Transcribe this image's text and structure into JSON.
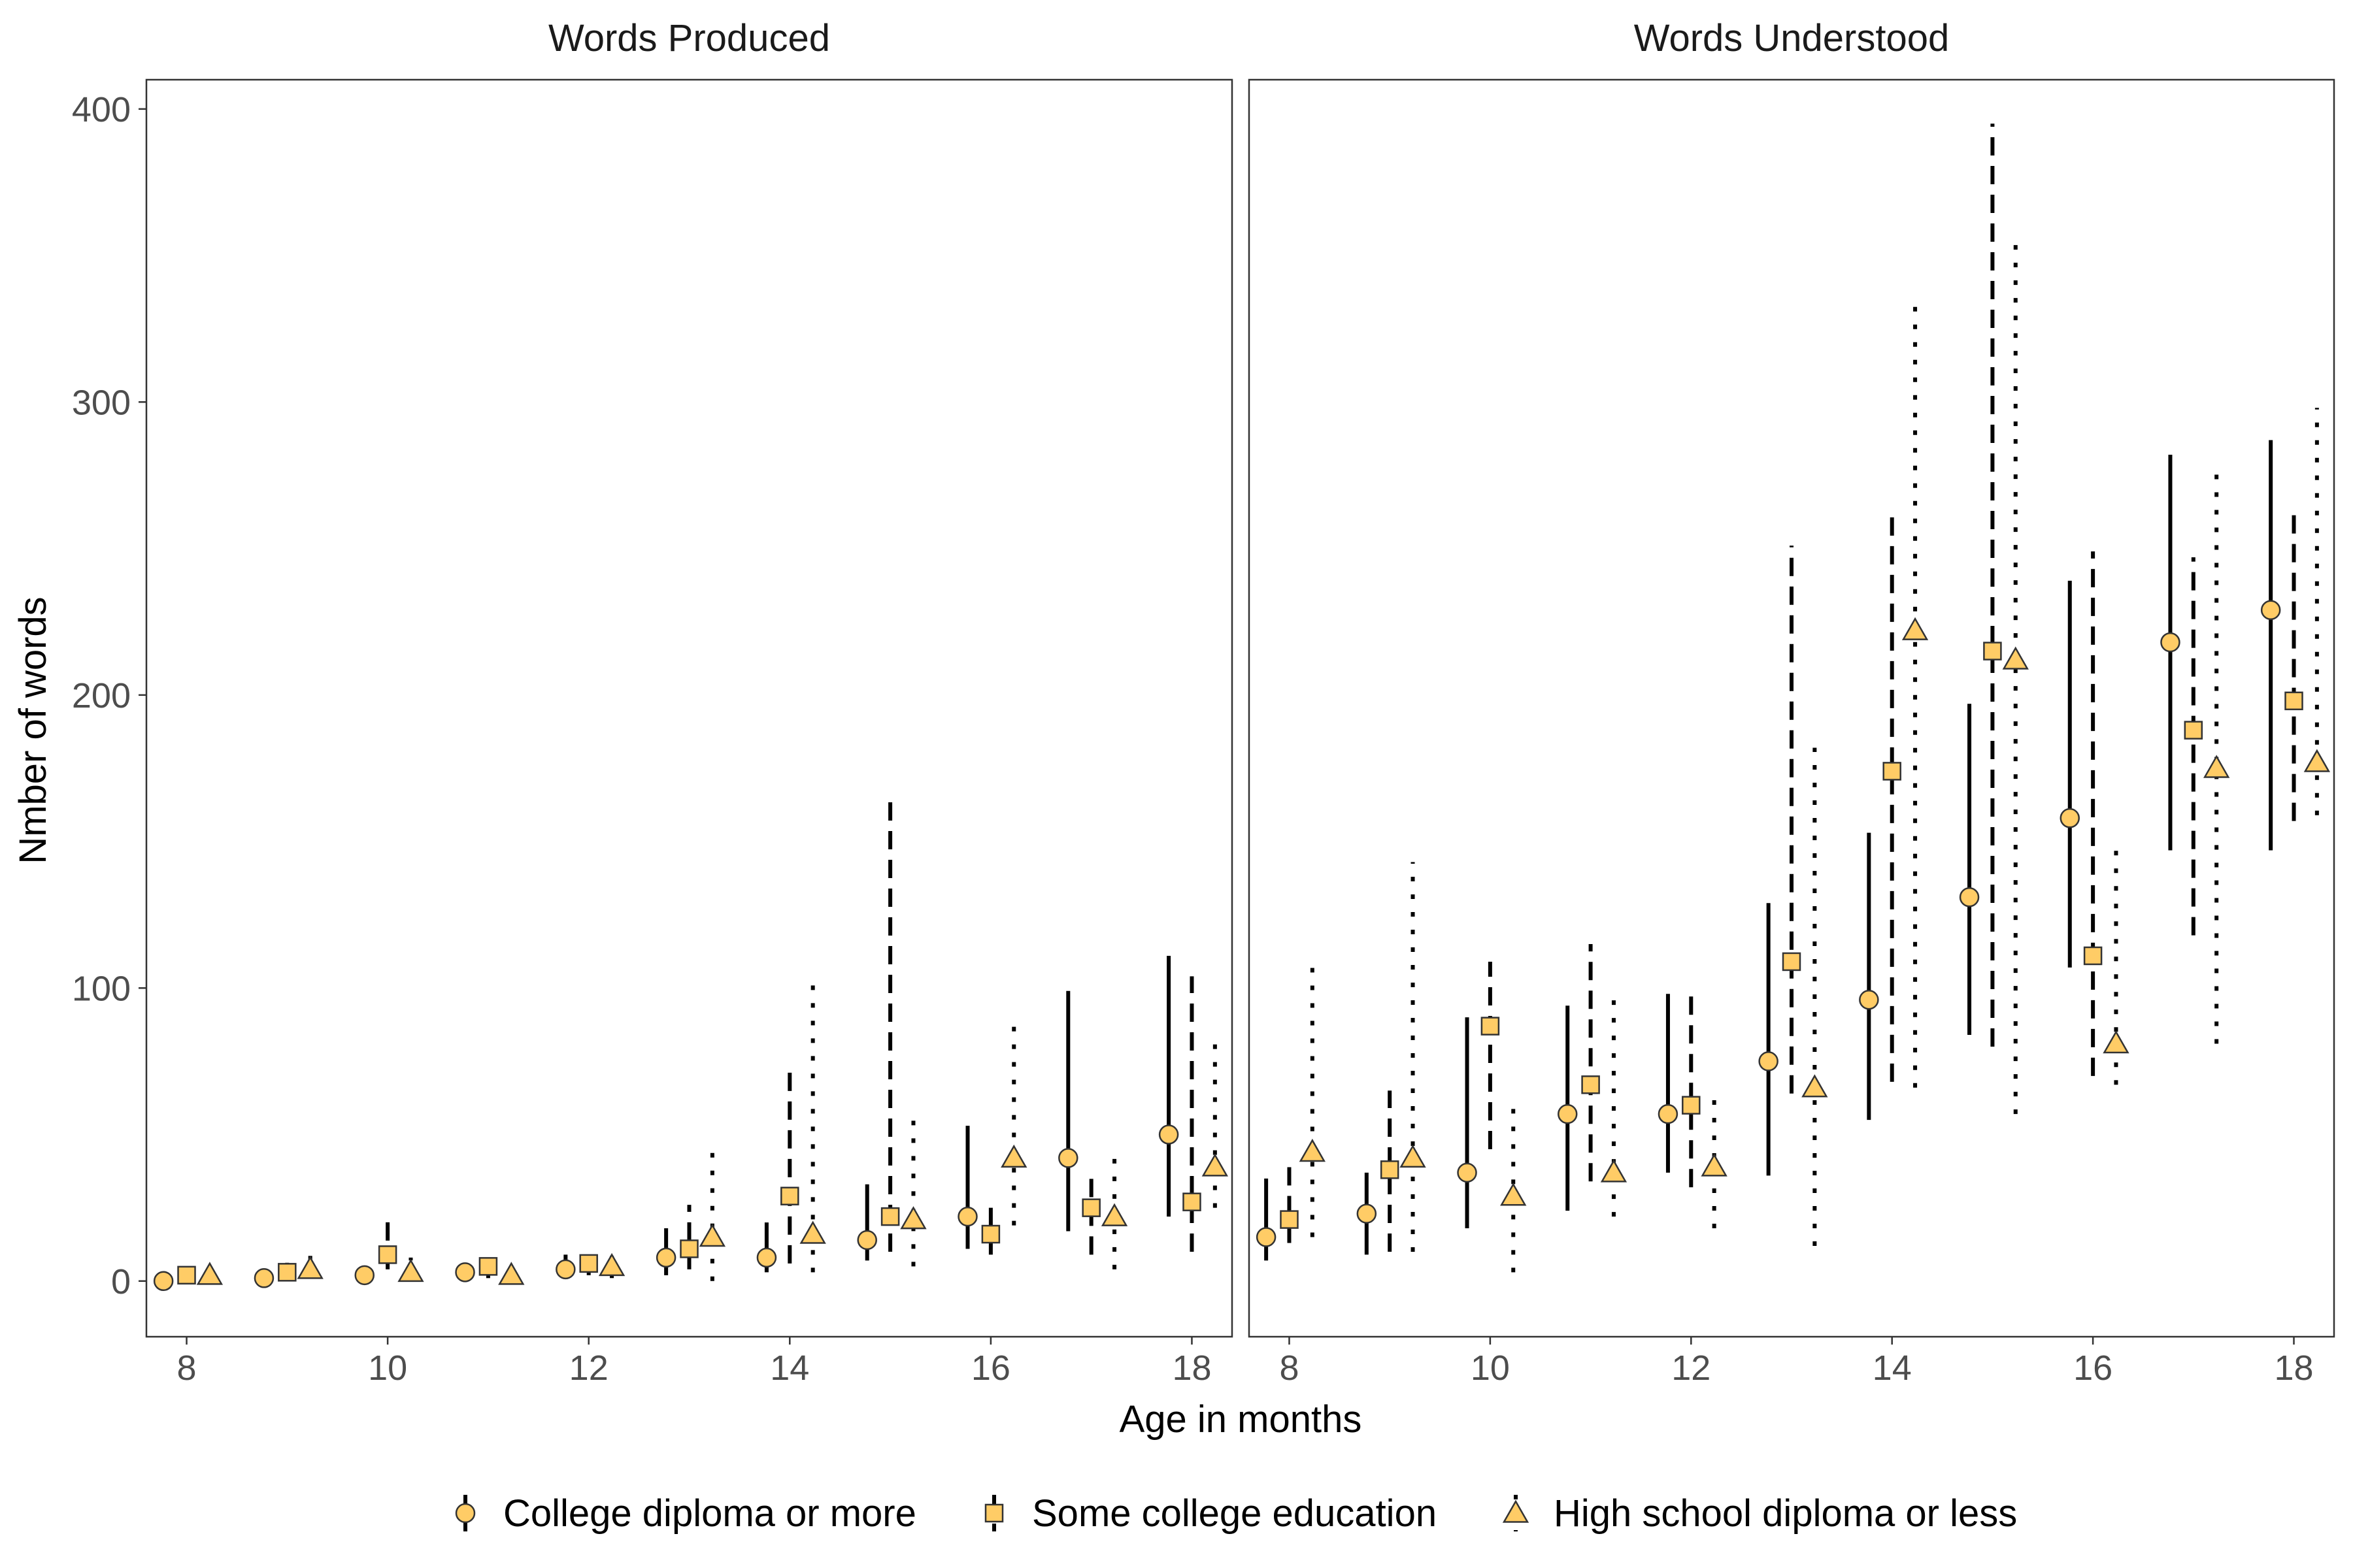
{
  "chart_data": {
    "type": "scatter",
    "xlabel": "Age in months",
    "ylabel": "Nmber of words",
    "xlim": [
      7.6,
      18.4
    ],
    "ylim": [
      -19,
      410
    ],
    "xticks": [
      8,
      10,
      12,
      14,
      16,
      18
    ],
    "yticks": [
      0,
      100,
      200,
      300,
      400
    ],
    "grid": false,
    "legend_position": "bottom",
    "marker_fill": "#FFCC66",
    "marker_stroke": "#333333",
    "range_color": "#000000",
    "series_offsets": [
      -0.23,
      0,
      0.23
    ],
    "series": [
      {
        "name": "College diploma or more",
        "marker": "circle",
        "range_style": "solid"
      },
      {
        "name": "Some college education",
        "marker": "square",
        "range_style": "dashed"
      },
      {
        "name": "High school diploma or less",
        "marker": "triangle",
        "range_style": "dotted"
      }
    ],
    "panels": [
      {
        "title": "Words Produced",
        "months": [
          8,
          9,
          10,
          11,
          12,
          13,
          14,
          15,
          16,
          17,
          18
        ],
        "data": [
          [
            {
              "y": 0,
              "lo": 0,
              "hi": 1
            },
            {
              "y": 1,
              "lo": 0,
              "hi": 3
            },
            {
              "y": 2,
              "lo": 0,
              "hi": 5
            },
            {
              "y": 3,
              "lo": 1,
              "hi": 6
            },
            {
              "y": 4,
              "lo": 1,
              "hi": 9
            },
            {
              "y": 8,
              "lo": 2,
              "hi": 18
            },
            {
              "y": 8,
              "lo": 3,
              "hi": 20
            },
            {
              "y": 14,
              "lo": 7,
              "hi": 33
            },
            {
              "y": 22,
              "lo": 11,
              "hi": 53
            },
            {
              "y": 42,
              "lo": 17,
              "hi": 99
            },
            {
              "y": 50,
              "lo": 22,
              "hi": 111
            }
          ],
          [
            {
              "y": 2,
              "lo": 0,
              "hi": 5
            },
            {
              "y": 3,
              "lo": 0,
              "hi": 9
            },
            {
              "y": 9,
              "lo": 4,
              "hi": 22
            },
            {
              "y": 5,
              "lo": 1,
              "hi": 8
            },
            {
              "y": 6,
              "lo": 2,
              "hi": 9
            },
            {
              "y": 11,
              "lo": 4,
              "hi": 26
            },
            {
              "y": 29,
              "lo": 6,
              "hi": 72
            },
            {
              "y": 22,
              "lo": 10,
              "hi": 165
            },
            {
              "y": 16,
              "lo": 9,
              "hi": 25
            },
            {
              "y": 25,
              "lo": 9,
              "hi": 37
            },
            {
              "y": 27,
              "lo": 10,
              "hi": 104
            }
          ],
          [
            {
              "y": 2,
              "lo": 0,
              "hi": 4
            },
            {
              "y": 4,
              "lo": 1,
              "hi": 13
            },
            {
              "y": 3,
              "lo": 1,
              "hi": 8
            },
            {
              "y": 2,
              "lo": 0,
              "hi": 5
            },
            {
              "y": 5,
              "lo": 1,
              "hi": 13
            },
            {
              "y": 15,
              "lo": 0,
              "hi": 44
            },
            {
              "y": 16,
              "lo": 3,
              "hi": 104
            },
            {
              "y": 21,
              "lo": 5,
              "hi": 56
            },
            {
              "y": 42,
              "lo": 19,
              "hi": 90
            },
            {
              "y": 22,
              "lo": 4,
              "hi": 42
            },
            {
              "y": 39,
              "lo": 25,
              "hi": 83
            }
          ]
        ]
      },
      {
        "title": "Words Understood",
        "months": [
          8,
          9,
          10,
          11,
          12,
          13,
          14,
          15,
          16,
          17,
          18
        ],
        "data": [
          [
            {
              "y": 15,
              "lo": 7,
              "hi": 35
            },
            {
              "y": 23,
              "lo": 9,
              "hi": 37
            },
            {
              "y": 37,
              "lo": 18,
              "hi": 90
            },
            {
              "y": 57,
              "lo": 24,
              "hi": 94
            },
            {
              "y": 57,
              "lo": 37,
              "hi": 98
            },
            {
              "y": 75,
              "lo": 36,
              "hi": 129
            },
            {
              "y": 96,
              "lo": 55,
              "hi": 153
            },
            {
              "y": 131,
              "lo": 84,
              "hi": 197
            },
            {
              "y": 158,
              "lo": 107,
              "hi": 239
            },
            {
              "y": 218,
              "lo": 147,
              "hi": 282
            },
            {
              "y": 229,
              "lo": 147,
              "hi": 287
            }
          ],
          [
            {
              "y": 21,
              "lo": 13,
              "hi": 41
            },
            {
              "y": 38,
              "lo": 10,
              "hi": 65
            },
            {
              "y": 87,
              "lo": 45,
              "hi": 109
            },
            {
              "y": 67,
              "lo": 34,
              "hi": 115
            },
            {
              "y": 60,
              "lo": 32,
              "hi": 100
            },
            {
              "y": 109,
              "lo": 64,
              "hi": 251
            },
            {
              "y": 174,
              "lo": 68,
              "hi": 262
            },
            {
              "y": 215,
              "lo": 80,
              "hi": 395
            },
            {
              "y": 111,
              "lo": 70,
              "hi": 249
            },
            {
              "y": 188,
              "lo": 118,
              "hi": 247
            },
            {
              "y": 198,
              "lo": 157,
              "hi": 264
            }
          ],
          [
            {
              "y": 44,
              "lo": 15,
              "hi": 110
            },
            {
              "y": 42,
              "lo": 10,
              "hi": 143
            },
            {
              "y": 29,
              "lo": 3,
              "hi": 61
            },
            {
              "y": 37,
              "lo": 22,
              "hi": 98
            },
            {
              "y": 39,
              "lo": 18,
              "hi": 63
            },
            {
              "y": 66,
              "lo": 12,
              "hi": 182
            },
            {
              "y": 222,
              "lo": 66,
              "hi": 336
            },
            {
              "y": 212,
              "lo": 57,
              "hi": 358
            },
            {
              "y": 81,
              "lo": 67,
              "hi": 151
            },
            {
              "y": 175,
              "lo": 81,
              "hi": 277
            },
            {
              "y": 177,
              "lo": 159,
              "hi": 298
            }
          ]
        ]
      }
    ]
  }
}
